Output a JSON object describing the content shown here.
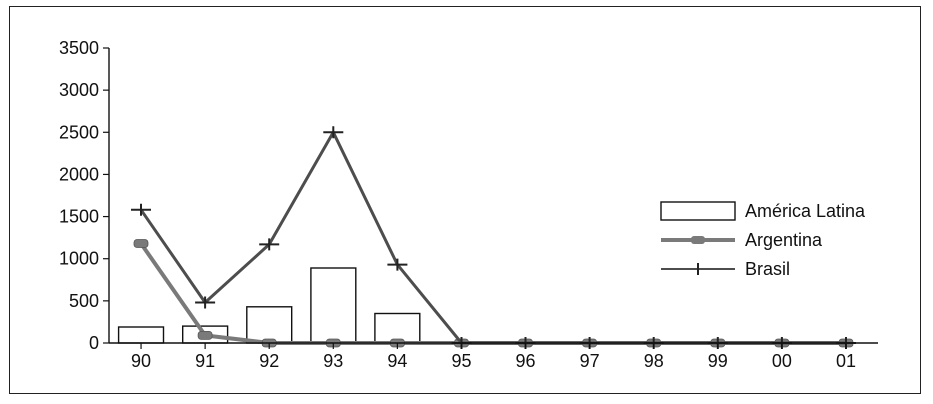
{
  "chart_data": {
    "type": "bar",
    "categories": [
      "90",
      "91",
      "92",
      "93",
      "94",
      "95",
      "96",
      "97",
      "98",
      "99",
      "00",
      "01"
    ],
    "ylim": [
      0,
      3500
    ],
    "yticks": [
      0,
      500,
      1000,
      1500,
      2000,
      2500,
      3000,
      3500
    ],
    "grid": false,
    "legend_position": "right",
    "series": [
      {
        "name": "América Latina",
        "kind": "bar",
        "color": "#ffffff",
        "values": [
          190,
          200,
          430,
          890,
          350,
          0,
          0,
          0,
          0,
          0,
          0,
          0
        ]
      },
      {
        "name": "Argentina",
        "kind": "line",
        "marker": "circle",
        "color": "#7a7a7a",
        "values": [
          1180,
          90,
          0,
          0,
          0,
          0,
          0,
          0,
          0,
          0,
          0,
          0
        ]
      },
      {
        "name": "Brasil",
        "kind": "line",
        "marker": "plus",
        "color": "#4d4d4d",
        "values": [
          1580,
          480,
          1170,
          2500,
          930,
          0,
          0,
          0,
          0,
          0,
          0,
          0
        ]
      }
    ]
  }
}
